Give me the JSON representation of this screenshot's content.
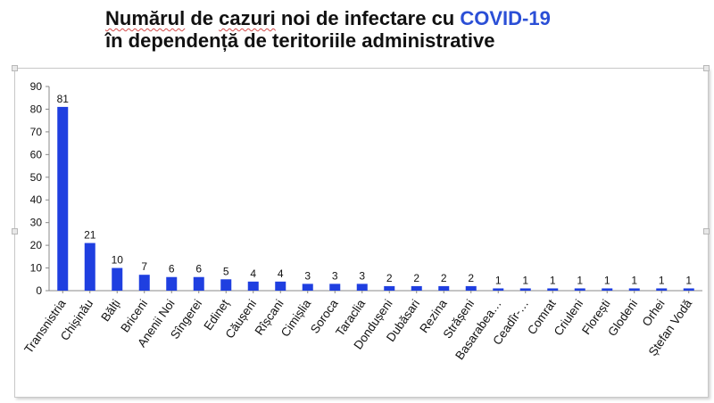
{
  "title": {
    "word1": "Numărul",
    "space1": " de ",
    "word2": "cazuri",
    "mid": " noi de infectare cu ",
    "accent": "COVID-19",
    "line2": "în dependență de teritoriile administrative"
  },
  "colors": {
    "bar": "#1f3fe0",
    "accent": "#2b4fd6",
    "axis": "#888888"
  },
  "chart_data": {
    "type": "bar",
    "categories": [
      "Transnistria",
      "Chișinău",
      "Bălți",
      "Briceni",
      "Anenii Noi",
      "Sîngerei",
      "Edineț",
      "Căușeni",
      "Rîșcani",
      "Cimișlia",
      "Soroca",
      "Taraclia",
      "Dondușeni",
      "Dubăsari",
      "Rezina",
      "Strășeni",
      "Basarabea…",
      "Ceadîr-…",
      "Comrat",
      "Criuleni",
      "Florești",
      "Glodeni",
      "Orhei",
      "Ștefan Vodă"
    ],
    "values": [
      81,
      21,
      10,
      7,
      6,
      6,
      5,
      4,
      4,
      3,
      3,
      3,
      2,
      2,
      2,
      2,
      1,
      1,
      1,
      1,
      1,
      1,
      1,
      1
    ],
    "ylim": [
      0,
      90
    ],
    "yticks": [
      0,
      10,
      20,
      30,
      40,
      50,
      60,
      70,
      80,
      90
    ],
    "data_labels": true,
    "grid": false
  }
}
